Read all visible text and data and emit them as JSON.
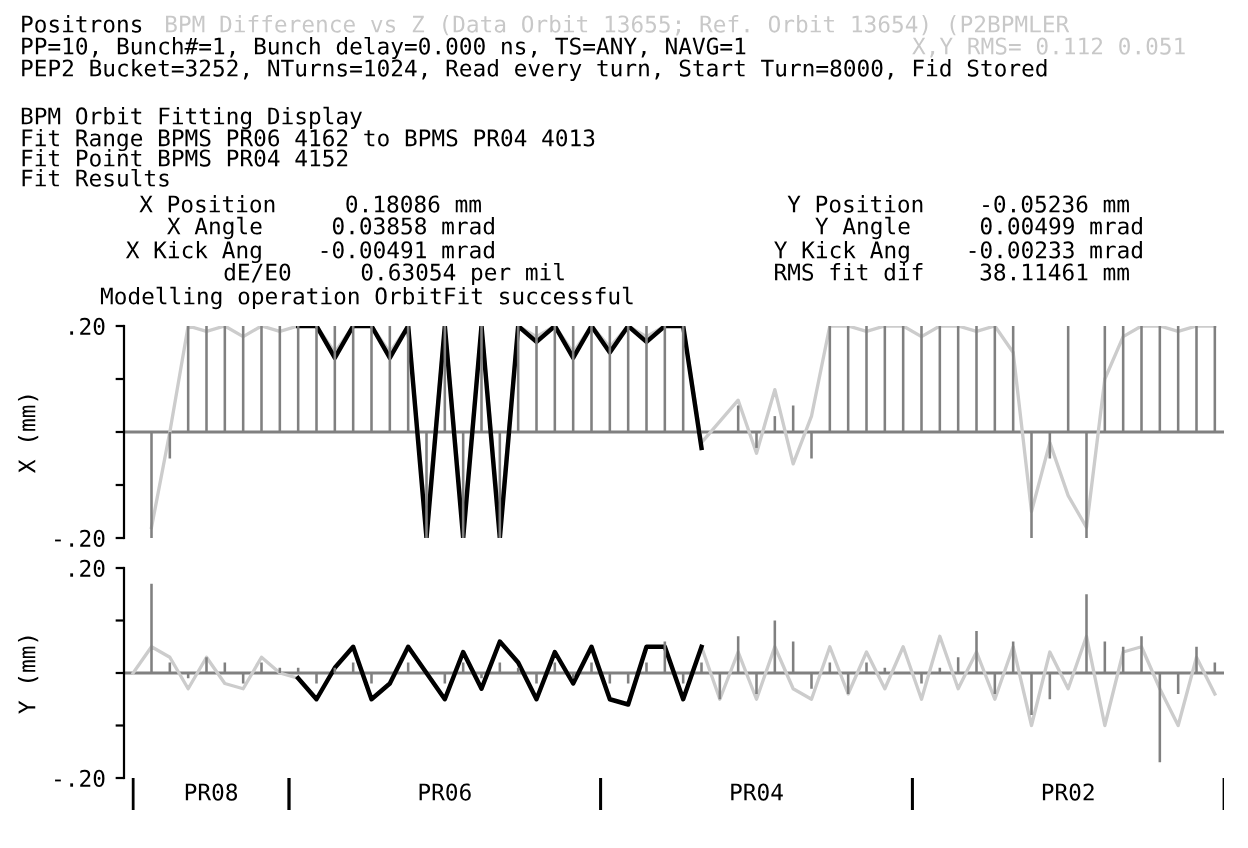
{
  "chart_data": [
    {
      "type": "bar",
      "title": "Positrons",
      "subtitle": "BPM Difference vs Z (Data Orbit 13655; Ref. Orbit 13654) (P2BPMLER",
      "ylabel": "X (mm)",
      "annotations": [
        "PP=10, Bunch#=1, Bunch delay=0.000 ns, TS=ANY, NAVG=1",
        "X,Y RMS= 0.112 0.051",
        "PEP2 Bucket=3252, NTurns=1024, Read every turn, Start Turn=8000, Fid Stored",
        "BPM Orbit Fitting Display",
        "Fit Range BPMS PR06 4162 to BPMS PR04 4013",
        "Fit Point BPMS PR04 4152",
        "Fit Results",
        "X Position     0.18086 mm",
        "X Angle     0.03858 mrad",
        "X Kick Ang    -0.00491 mrad",
        "dE/E0     0.63054 per mil",
        "Y Position    -0.05236 mm",
        "Y Angle     0.00499 mrad",
        "Y Kick Ang    -0.00233 mrad",
        "RMS fit dif    38.11461 mm",
        "Modelling operation OrbitFit successful"
      ],
      "categories": [
        null,
        null,
        null,
        null,
        null,
        null,
        null,
        null,
        null,
        null,
        null,
        null,
        null,
        null,
        null,
        null,
        null,
        null,
        null,
        null,
        null,
        null,
        null,
        null,
        null,
        null,
        null,
        null,
        null,
        null,
        null,
        null,
        null,
        null,
        null,
        null,
        null,
        null,
        null,
        null,
        null,
        null,
        null,
        null,
        null,
        null,
        null,
        null,
        null,
        null,
        null,
        null,
        null,
        null,
        null,
        null,
        null,
        null,
        null,
        null
      ],
      "ylim": [
        -0.2,
        0.2
      ],
      "yticks": [
        {
          "value": -0.2,
          "label": "-.20"
        },
        {
          "value": -0.1,
          "label": null
        },
        {
          "value": 0,
          "label": null
        },
        {
          "value": 0.1,
          "label": null
        },
        {
          "value": 0.2,
          "label": ".20"
        }
      ],
      "ref_lines": [
        {
          "axis": "y",
          "value": 0,
          "color": "#808080"
        }
      ],
      "series": [
        {
          "color": "#808080",
          "values": [
            0,
            -0.2,
            -0.05,
            0.2,
            0.2,
            0.2,
            0.2,
            0.2,
            0.2,
            0.2,
            0.2,
            0.2,
            0.2,
            0.2,
            0.2,
            0.2,
            -0.2,
            0.2,
            -0.2,
            0.2,
            -0.2,
            0.2,
            0.2,
            0.2,
            0.2,
            0.2,
            0.2,
            0.2,
            0.2,
            0.2,
            0.2,
            0.0,
            0.0,
            0.05,
            -0.03,
            0.03,
            0.05,
            -0.05,
            0.2,
            0.2,
            0.2,
            0.2,
            0.2,
            0.2,
            0.2,
            0.2,
            0.2,
            0.2,
            0.2,
            -0.2,
            -0.05,
            0.2,
            -0.2,
            0.2,
            0.2,
            0.2,
            0.2,
            0.2,
            0.2,
            0.2
          ]
        },
        {
          "type": "line",
          "color": "#cccccc",
          "values": [
            null,
            -0.18,
            0.0,
            0.2,
            0.19,
            0.2,
            0.18,
            0.2,
            0.19,
            0.2,
            0.2,
            0.15,
            0.2,
            0.2,
            0.15,
            0.2,
            -0.18,
            0.2,
            -0.18,
            0.2,
            -0.18,
            0.2,
            0.18,
            0.2,
            0.15,
            0.2,
            0.16,
            0.2,
            0.18,
            0.2,
            0.2,
            -0.02,
            0.02,
            0.06,
            -0.04,
            0.08,
            -0.06,
            0.03,
            0.2,
            0.2,
            0.19,
            0.2,
            0.2,
            0.18,
            0.2,
            0.2,
            0.19,
            0.2,
            0.15,
            -0.15,
            -0.02,
            -0.12,
            -0.18,
            0.1,
            0.18,
            0.2,
            0.2,
            0.19,
            0.2,
            0.2
          ]
        },
        {
          "type": "line",
          "color": "#000000",
          "values": [
            null,
            null,
            null,
            null,
            null,
            null,
            null,
            null,
            null,
            0.2,
            0.2,
            0.14,
            0.2,
            0.2,
            0.14,
            0.2,
            -0.2,
            0.2,
            -0.2,
            0.2,
            -0.2,
            0.2,
            0.17,
            0.2,
            0.14,
            0.2,
            0.15,
            0.2,
            0.17,
            0.2,
            0.2,
            -0.03,
            null,
            null,
            null,
            null,
            null,
            null,
            null,
            null,
            null,
            null,
            null,
            null,
            null,
            null,
            null,
            null,
            null,
            null,
            null,
            null,
            null,
            null,
            null,
            null,
            null,
            null,
            null,
            null
          ]
        }
      ]
    },
    {
      "type": "bar",
      "ylabel": "Y (mm)",
      "annotations": [
        "PR08",
        "PR06",
        "PR04",
        "PR02"
      ],
      "categories": [
        null,
        null,
        null,
        null,
        null,
        null,
        null,
        null,
        null,
        null,
        null,
        null,
        null,
        null,
        null,
        null,
        null,
        null,
        null,
        null,
        null,
        null,
        null,
        null,
        null,
        null,
        null,
        null,
        null,
        null,
        null,
        null,
        null,
        null,
        null,
        null,
        null,
        null,
        null,
        null,
        null,
        null,
        null,
        null,
        null,
        null,
        null,
        null,
        null,
        null,
        null,
        null,
        null,
        null,
        null,
        null,
        null,
        null,
        null,
        null
      ],
      "ylim": [
        -0.2,
        0.2
      ],
      "yticks": [
        {
          "value": -0.2,
          "label": "-.20"
        },
        {
          "value": -0.1,
          "label": null
        },
        {
          "value": 0,
          "label": null
        },
        {
          "value": 0.1,
          "label": null
        },
        {
          "value": 0.2,
          "label": ".20"
        }
      ],
      "ref_lines": [
        {
          "axis": "y",
          "value": 0,
          "color": "#808080"
        }
      ],
      "series": [
        {
          "color": "#808080",
          "values": [
            0,
            0.17,
            0.02,
            -0.01,
            0.03,
            0.02,
            -0.02,
            0.02,
            0.01,
            0.01,
            -0.02,
            0.01,
            0.02,
            -0.02,
            0,
            0.02,
            0,
            -0.02,
            0.02,
            -0.01,
            0.02,
            0.01,
            -0.02,
            0.02,
            -0.01,
            0.02,
            -0.02,
            -0.02,
            0.02,
            0.06,
            -0.02,
            0.02,
            -0.05,
            0.07,
            -0.04,
            0.1,
            0.06,
            -0.03,
            0.02,
            -0.04,
            0.02,
            0.01,
            0.0,
            -0.02,
            0.01,
            0.03,
            0.08,
            -0.04,
            0.06,
            -0.08,
            -0.05,
            0.0,
            0.15,
            0.06,
            0.05,
            0.07,
            -0.17,
            -0.04,
            0.05,
            0.02
          ]
        },
        {
          "type": "line",
          "color": "#cccccc",
          "values": [
            0.0,
            0.05,
            0.03,
            -0.03,
            0.03,
            -0.02,
            -0.03,
            0.03,
            0.0,
            -0.01,
            -0.05,
            0.01,
            0.05,
            -0.05,
            -0.02,
            0.05,
            0.0,
            -0.05,
            0.04,
            -0.03,
            0.06,
            0.02,
            -0.05,
            0.04,
            -0.02,
            0.05,
            -0.05,
            -0.06,
            0.05,
            0.05,
            -0.05,
            0.05,
            -0.05,
            0.04,
            -0.05,
            0.05,
            -0.03,
            -0.05,
            0.05,
            -0.04,
            0.04,
            -0.03,
            0.05,
            -0.05,
            0.07,
            -0.03,
            0.04,
            -0.05,
            0.05,
            -0.1,
            0.04,
            -0.03,
            0.07,
            -0.1,
            0.04,
            0.05,
            -0.03,
            -0.1,
            0.03,
            -0.04
          ]
        },
        {
          "type": "line",
          "color": "#000000",
          "values": [
            null,
            null,
            null,
            null,
            null,
            null,
            null,
            null,
            null,
            -0.01,
            -0.05,
            0.01,
            0.05,
            -0.05,
            -0.02,
            0.05,
            0.0,
            -0.05,
            0.04,
            -0.03,
            0.06,
            0.02,
            -0.05,
            0.04,
            -0.02,
            0.05,
            -0.05,
            -0.06,
            0.05,
            0.05,
            -0.05,
            0.05,
            null,
            null,
            null,
            null,
            null,
            null,
            null,
            null,
            null,
            null,
            null,
            null,
            null,
            null,
            null,
            null,
            null,
            null,
            null,
            null,
            null,
            null,
            null,
            null,
            null,
            null,
            null,
            null
          ]
        }
      ]
    }
  ]
}
